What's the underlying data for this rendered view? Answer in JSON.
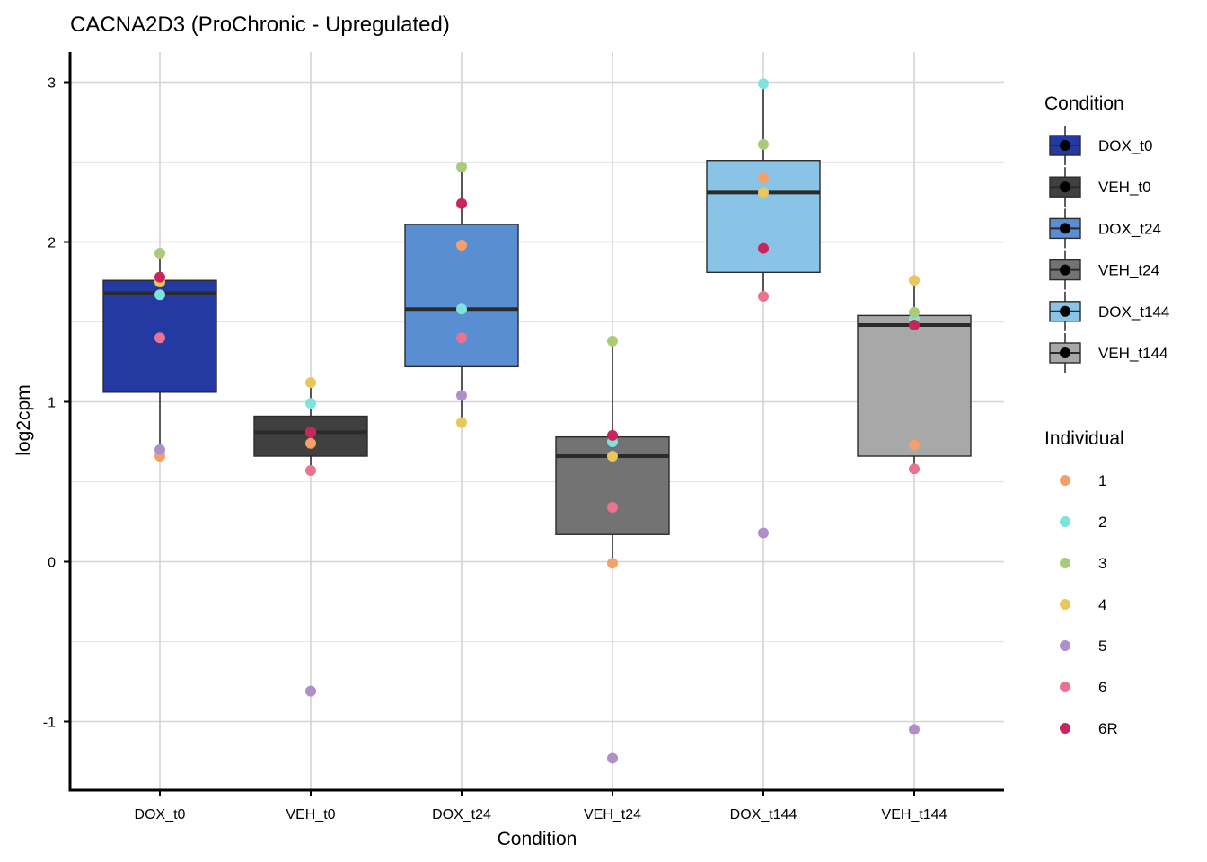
{
  "chart_data": {
    "type": "box",
    "title": "CACNA2D3 (ProChronic - Upregulated)",
    "xlabel": "Condition",
    "ylabel": "log2cpm",
    "ylim": [
      -1.45,
      3.2
    ],
    "yticks": [
      -1,
      0,
      1,
      2,
      3
    ],
    "grid": true,
    "legend_position": "right",
    "categories": [
      "DOX_t0",
      "VEH_t0",
      "DOX_t24",
      "VEH_t24",
      "DOX_t144",
      "VEH_t144"
    ],
    "boxes": [
      {
        "condition": "DOX_t0",
        "q1": 1.06,
        "median": 1.68,
        "q3": 1.76,
        "whisker_low": 0.66,
        "whisker_high": 1.93
      },
      {
        "condition": "VEH_t0",
        "q1": 0.66,
        "median": 0.81,
        "q3": 0.91,
        "whisker_low": 0.57,
        "whisker_high": 1.12
      },
      {
        "condition": "DOX_t24",
        "q1": 1.22,
        "median": 1.58,
        "q3": 2.11,
        "whisker_low": 0.87,
        "whisker_high": 2.47
      },
      {
        "condition": "VEH_t24",
        "q1": 0.17,
        "median": 0.66,
        "q3": 0.78,
        "whisker_low": -0.01,
        "whisker_high": 1.38
      },
      {
        "condition": "DOX_t144",
        "q1": 1.81,
        "median": 2.31,
        "q3": 2.51,
        "whisker_low": 1.66,
        "whisker_high": 2.99
      },
      {
        "condition": "VEH_t144",
        "q1": 0.66,
        "median": 1.48,
        "q3": 1.54,
        "whisker_low": 0.58,
        "whisker_high": 1.76
      }
    ],
    "series": [
      {
        "name": "1",
        "values": [
          0.66,
          0.74,
          1.98,
          -0.01,
          2.4,
          0.73
        ]
      },
      {
        "name": "2",
        "values": [
          1.67,
          0.99,
          1.58,
          0.75,
          2.99,
          1.52
        ]
      },
      {
        "name": "3",
        "values": [
          1.93,
          0.81,
          2.47,
          1.38,
          2.61,
          1.56
        ]
      },
      {
        "name": "4",
        "values": [
          1.75,
          1.12,
          0.87,
          0.66,
          2.31,
          1.76
        ]
      },
      {
        "name": "5",
        "values": [
          0.7,
          -0.81,
          1.04,
          -1.23,
          0.18,
          -1.05
        ]
      },
      {
        "name": "6",
        "values": [
          1.4,
          0.57,
          1.4,
          0.34,
          1.66,
          0.58
        ]
      },
      {
        "name": "6R",
        "values": [
          1.78,
          0.81,
          2.24,
          0.79,
          1.96,
          1.48
        ]
      }
    ],
    "legend_condition": {
      "title": "Condition",
      "entries": [
        {
          "label": "DOX_t0",
          "color": "#2439A1"
        },
        {
          "label": "VEH_t0",
          "color": "#404040"
        },
        {
          "label": "DOX_t24",
          "color": "#5A8ED2"
        },
        {
          "label": "VEH_t24",
          "color": "#737373"
        },
        {
          "label": "DOX_t144",
          "color": "#89C4E6"
        },
        {
          "label": "VEH_t144",
          "color": "#A8A8A8"
        }
      ]
    },
    "legend_individual": {
      "title": "Individual",
      "entries": [
        {
          "label": "1",
          "color": "#F4A06B"
        },
        {
          "label": "2",
          "color": "#7EE3DC"
        },
        {
          "label": "3",
          "color": "#A9CB7A"
        },
        {
          "label": "4",
          "color": "#E9C75B"
        },
        {
          "label": "5",
          "color": "#AE8FC7"
        },
        {
          "label": "6",
          "color": "#EA7392"
        },
        {
          "label": "6R",
          "color": "#C8265A"
        }
      ]
    }
  }
}
